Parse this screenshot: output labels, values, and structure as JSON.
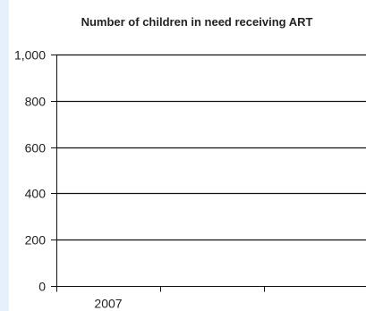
{
  "chart_data": {
    "type": "bar",
    "title": "Number of children in need receiving ART",
    "xlabel": "",
    "ylabel": "",
    "categories": [
      "2007",
      "",
      ""
    ],
    "series": [
      {
        "values": [
          null,
          null,
          null
        ]
      }
    ],
    "ylim": [
      0,
      1000
    ],
    "yticks": [
      0,
      200,
      400,
      600,
      800,
      1000
    ],
    "ytick_labels": [
      "0",
      "200",
      "400",
      "600",
      "800",
      "1,000"
    ],
    "grid": true,
    "legend": "none"
  },
  "colors": {
    "panel_background": "#e6f0fa",
    "gridline": "#111111",
    "text": "#222222"
  }
}
